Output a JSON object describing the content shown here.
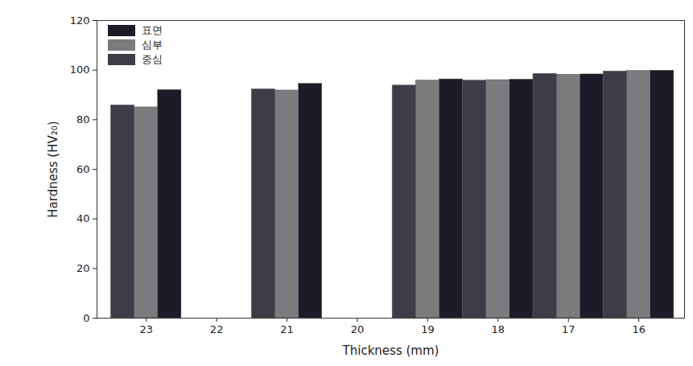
{
  "chart_data": {
    "type": "bar",
    "x_label": "Thickness (mm)",
    "y_label": "Hardness (HV₂₀)",
    "categories": [
      "23",
      "22",
      "21",
      "20",
      "19",
      "18",
      "17",
      "16"
    ],
    "series": [
      {
        "name": "표면",
        "color": "#1c1c28",
        "values": [
          92,
          null,
          94.5,
          null,
          96.3,
          96.2,
          98.3,
          99.8
        ]
      },
      {
        "name": "심부",
        "color": "#7b7b7e",
        "values": [
          85,
          null,
          91.8,
          null,
          95.8,
          96,
          98.2,
          99.7
        ]
      },
      {
        "name": "중심",
        "color": "#3d3d47",
        "values": [
          85.8,
          null,
          92.3,
          null,
          93.8,
          95.8,
          98.5,
          99.5
        ]
      }
    ],
    "ylim": [
      0,
      120
    ],
    "yticks": [
      0,
      20,
      40,
      60,
      80,
      100,
      120
    ],
    "grid": false,
    "legend": "top-left"
  }
}
